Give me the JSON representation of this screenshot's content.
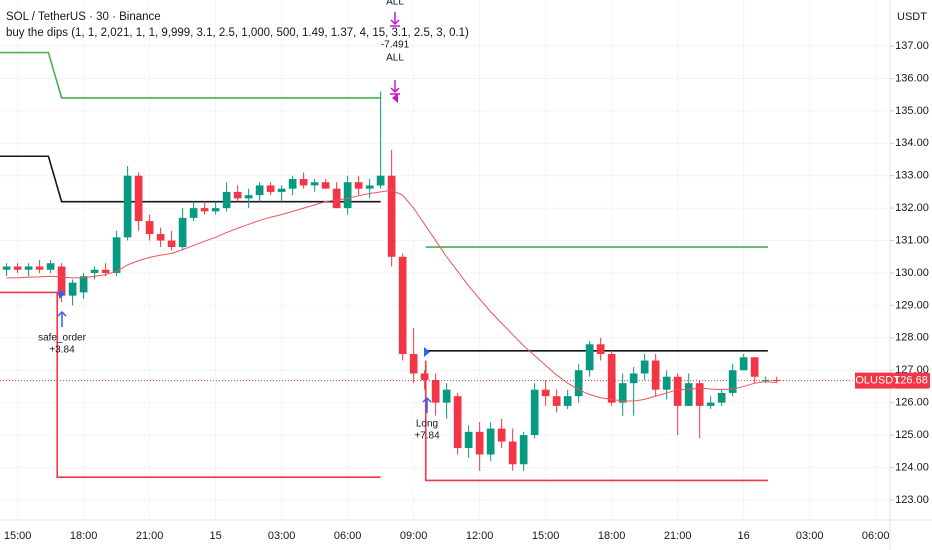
{
  "header": {
    "symbol": "SOL / TetherUS · 30 · Binance",
    "indicator": "buy the dips  (1, 1, 2,021, 1, 1, 9,999, 3.1, 2.5, 1,000, 500, 1.49, 1.37, 4, 15, 3.1, 2.5, 3, 0.1)"
  },
  "chart_data": {
    "type": "candlestick",
    "currency": "USDT",
    "x": [
      -1,
      0,
      1,
      2,
      3,
      4,
      5,
      6,
      7,
      8,
      9,
      10,
      11,
      12,
      13,
      14,
      15,
      16,
      17,
      18,
      19,
      20,
      21,
      22,
      23,
      24,
      25,
      26,
      27,
      28,
      29,
      30,
      31,
      32,
      33,
      34,
      35,
      36,
      37,
      38,
      39,
      40,
      41,
      42,
      43,
      44,
      45,
      46,
      47,
      48,
      49,
      50,
      51,
      52,
      53,
      54,
      55,
      56,
      57,
      58,
      59,
      60,
      61,
      62,
      63,
      64,
      65,
      66,
      67,
      68,
      69
    ],
    "open": [
      130.1,
      130.2,
      130.1,
      130.2,
      130.1,
      130.2,
      129.3,
      129.4,
      130.0,
      130.1,
      130.0,
      131.1,
      133.0,
      131.6,
      131.2,
      131.0,
      130.8,
      131.7,
      132.0,
      131.9,
      132.0,
      132.5,
      132.3,
      132.4,
      132.7,
      132.5,
      132.6,
      132.9,
      132.7,
      132.8,
      132.6,
      132.0,
      132.8,
      132.6,
      132.7,
      133.0,
      130.5,
      127.5,
      126.9,
      126.7,
      126.0,
      126.2,
      124.6,
      125.1,
      124.4,
      125.2,
      124.8,
      124.1,
      125.0,
      126.4,
      126.2,
      125.9,
      126.2,
      127.0,
      127.8,
      127.5,
      126.0,
      126.6,
      126.9,
      127.3,
      126.4,
      126.8,
      125.9,
      126.6,
      125.9,
      126.0,
      126.3,
      127.0,
      127.4,
      126.7,
      126.7
    ],
    "high": [
      130.3,
      130.3,
      130.3,
      130.4,
      130.4,
      130.3,
      129.8,
      130.0,
      130.2,
      130.3,
      131.3,
      133.3,
      133.1,
      131.8,
      131.4,
      131.3,
      132.0,
      132.2,
      132.2,
      132.2,
      132.8,
      132.7,
      132.6,
      132.8,
      132.8,
      132.7,
      133.0,
      133.1,
      132.9,
      132.9,
      132.8,
      133.0,
      133.0,
      132.9,
      135.6,
      133.8,
      130.6,
      128.3,
      127.0,
      126.9,
      126.6,
      126.3,
      125.3,
      125.4,
      125.4,
      125.5,
      125.2,
      125.1,
      126.6,
      126.7,
      126.4,
      126.4,
      127.2,
      127.9,
      128.0,
      127.6,
      126.9,
      127.1,
      127.5,
      127.5,
      127.0,
      126.9,
      126.9,
      126.7,
      126.2,
      126.4,
      127.2,
      127.5,
      127.4,
      126.8,
      126.8
    ],
    "low": [
      129.9,
      130.0,
      129.9,
      130.0,
      130.0,
      129.1,
      129.0,
      129.2,
      129.8,
      129.9,
      129.9,
      131.0,
      131.3,
      131.0,
      130.8,
      130.7,
      130.7,
      131.6,
      131.8,
      131.8,
      131.9,
      132.2,
      132.0,
      132.2,
      132.4,
      132.2,
      132.4,
      132.6,
      132.5,
      132.6,
      132.0,
      131.8,
      132.4,
      132.3,
      132.6,
      130.2,
      127.3,
      126.6,
      126.4,
      125.6,
      125.5,
      124.4,
      124.3,
      123.9,
      124.2,
      124.6,
      123.9,
      123.9,
      124.9,
      125.9,
      125.7,
      125.8,
      126.0,
      126.8,
      127.3,
      125.9,
      125.6,
      125.6,
      126.7,
      126.2,
      126.1,
      125.0,
      125.9,
      124.9,
      125.8,
      125.9,
      126.2,
      127.0,
      126.6,
      126.6,
      126.6
    ],
    "close": [
      130.2,
      130.1,
      130.2,
      130.1,
      130.3,
      129.3,
      129.7,
      129.9,
      130.1,
      130.0,
      131.1,
      133.0,
      131.6,
      131.2,
      131.0,
      130.8,
      131.7,
      132.0,
      131.9,
      132.0,
      132.5,
      132.3,
      132.4,
      132.7,
      132.5,
      132.6,
      132.9,
      132.7,
      132.8,
      132.6,
      132.0,
      132.8,
      132.6,
      132.7,
      133.0,
      130.5,
      127.5,
      126.9,
      126.7,
      126.0,
      126.4,
      124.6,
      125.1,
      124.4,
      125.2,
      124.8,
      124.1,
      125.0,
      126.4,
      126.2,
      125.9,
      126.2,
      127.0,
      127.8,
      127.5,
      126.0,
      126.6,
      126.9,
      127.3,
      126.4,
      126.8,
      125.9,
      126.6,
      125.9,
      126.0,
      126.3,
      127.0,
      127.4,
      126.8,
      126.7,
      126.68
    ],
    "up_color": "#089981",
    "down_color": "#f23645",
    "ma": {
      "color": "#e8575a",
      "values": [
        129.85,
        129.85,
        129.87,
        129.88,
        129.9,
        129.88,
        129.85,
        129.85,
        129.9,
        129.95,
        130.05,
        130.25,
        130.38,
        130.48,
        130.55,
        130.6,
        130.72,
        130.85,
        130.98,
        131.1,
        131.25,
        131.38,
        131.5,
        131.62,
        131.72,
        131.8,
        131.9,
        132.0,
        132.1,
        132.2,
        132.25,
        132.3,
        132.38,
        132.45,
        132.5,
        132.55,
        132.4,
        132.0,
        131.5,
        131.0,
        130.5,
        130.05,
        129.6,
        129.2,
        128.8,
        128.45,
        128.1,
        127.75,
        127.45,
        127.15,
        126.85,
        126.6,
        126.4,
        126.25,
        126.15,
        126.1,
        126.05,
        126.05,
        126.1,
        126.2,
        126.3,
        126.4,
        126.4,
        126.45,
        126.42,
        126.4,
        126.42,
        126.5,
        126.6,
        126.65,
        126.62
      ]
    },
    "lines": [
      {
        "color": "#4caf50",
        "x": [
          -1.6,
          2.8,
          4,
          33,
          35,
          37.1,
          68.2
        ],
        "values": [
          136.8,
          136.8,
          135.4,
          135.4,
          null,
          130.8,
          130.8
        ]
      },
      {
        "color": "#131722",
        "x": [
          -1.6,
          2.8,
          4,
          33,
          35,
          37.1,
          68.2
        ],
        "values": [
          133.6,
          133.6,
          132.2,
          132.2,
          null,
          127.6,
          127.6
        ]
      },
      {
        "color": "#f23645",
        "x": [
          -1.6,
          3.6,
          3.6,
          33,
          35,
          37.1,
          37.1,
          68.2
        ],
        "values": [
          129.4,
          129.4,
          123.7,
          123.7,
          null,
          127.3,
          123.6,
          123.6
        ]
      }
    ],
    "last_price": {
      "name": "SOLUSDT",
      "value": 126.68
    },
    "annotations": [
      "safe_order",
      "+3.84",
      "Long",
      "+7.84",
      "ALL",
      "-7.491",
      "ALL"
    ],
    "xlim": [
      -1.6,
      79.3
    ],
    "ylim": [
      122.38,
      138.42
    ],
    "xticks": [
      {
        "value": 0,
        "label": "15:00"
      },
      {
        "value": 6,
        "label": "18:00"
      },
      {
        "value": 12,
        "label": "21:00"
      },
      {
        "value": 18,
        "label": "15"
      },
      {
        "value": 24,
        "label": "03:00"
      },
      {
        "value": 30,
        "label": "06:00"
      },
      {
        "value": 36,
        "label": "09:00"
      },
      {
        "value": 42,
        "label": "12:00"
      },
      {
        "value": 48,
        "label": "15:00"
      },
      {
        "value": 54,
        "label": "18:00"
      },
      {
        "value": 60,
        "label": "21:00"
      },
      {
        "value": 66,
        "label": "16"
      },
      {
        "value": 72,
        "label": "03:00"
      },
      {
        "value": 78,
        "label": "06:00"
      }
    ],
    "yticks": [
      {
        "value": 123,
        "label": "123.00"
      },
      {
        "value": 124,
        "label": "124.00"
      },
      {
        "value": 125,
        "label": "125.00"
      },
      {
        "value": 126,
        "label": "126.00"
      },
      {
        "value": 127,
        "label": "127.00"
      },
      {
        "value": 128,
        "label": "128.00"
      },
      {
        "value": 129,
        "label": "129.00"
      },
      {
        "value": 130,
        "label": "130.00"
      },
      {
        "value": 131,
        "label": "131.00"
      },
      {
        "value": 132,
        "label": "132.00"
      },
      {
        "value": 133,
        "label": "133.00"
      },
      {
        "value": 134,
        "label": "134.00"
      },
      {
        "value": 135,
        "label": "135.00"
      },
      {
        "value": 136,
        "label": "136.00"
      },
      {
        "value": 137,
        "label": "137.00"
      }
    ]
  }
}
